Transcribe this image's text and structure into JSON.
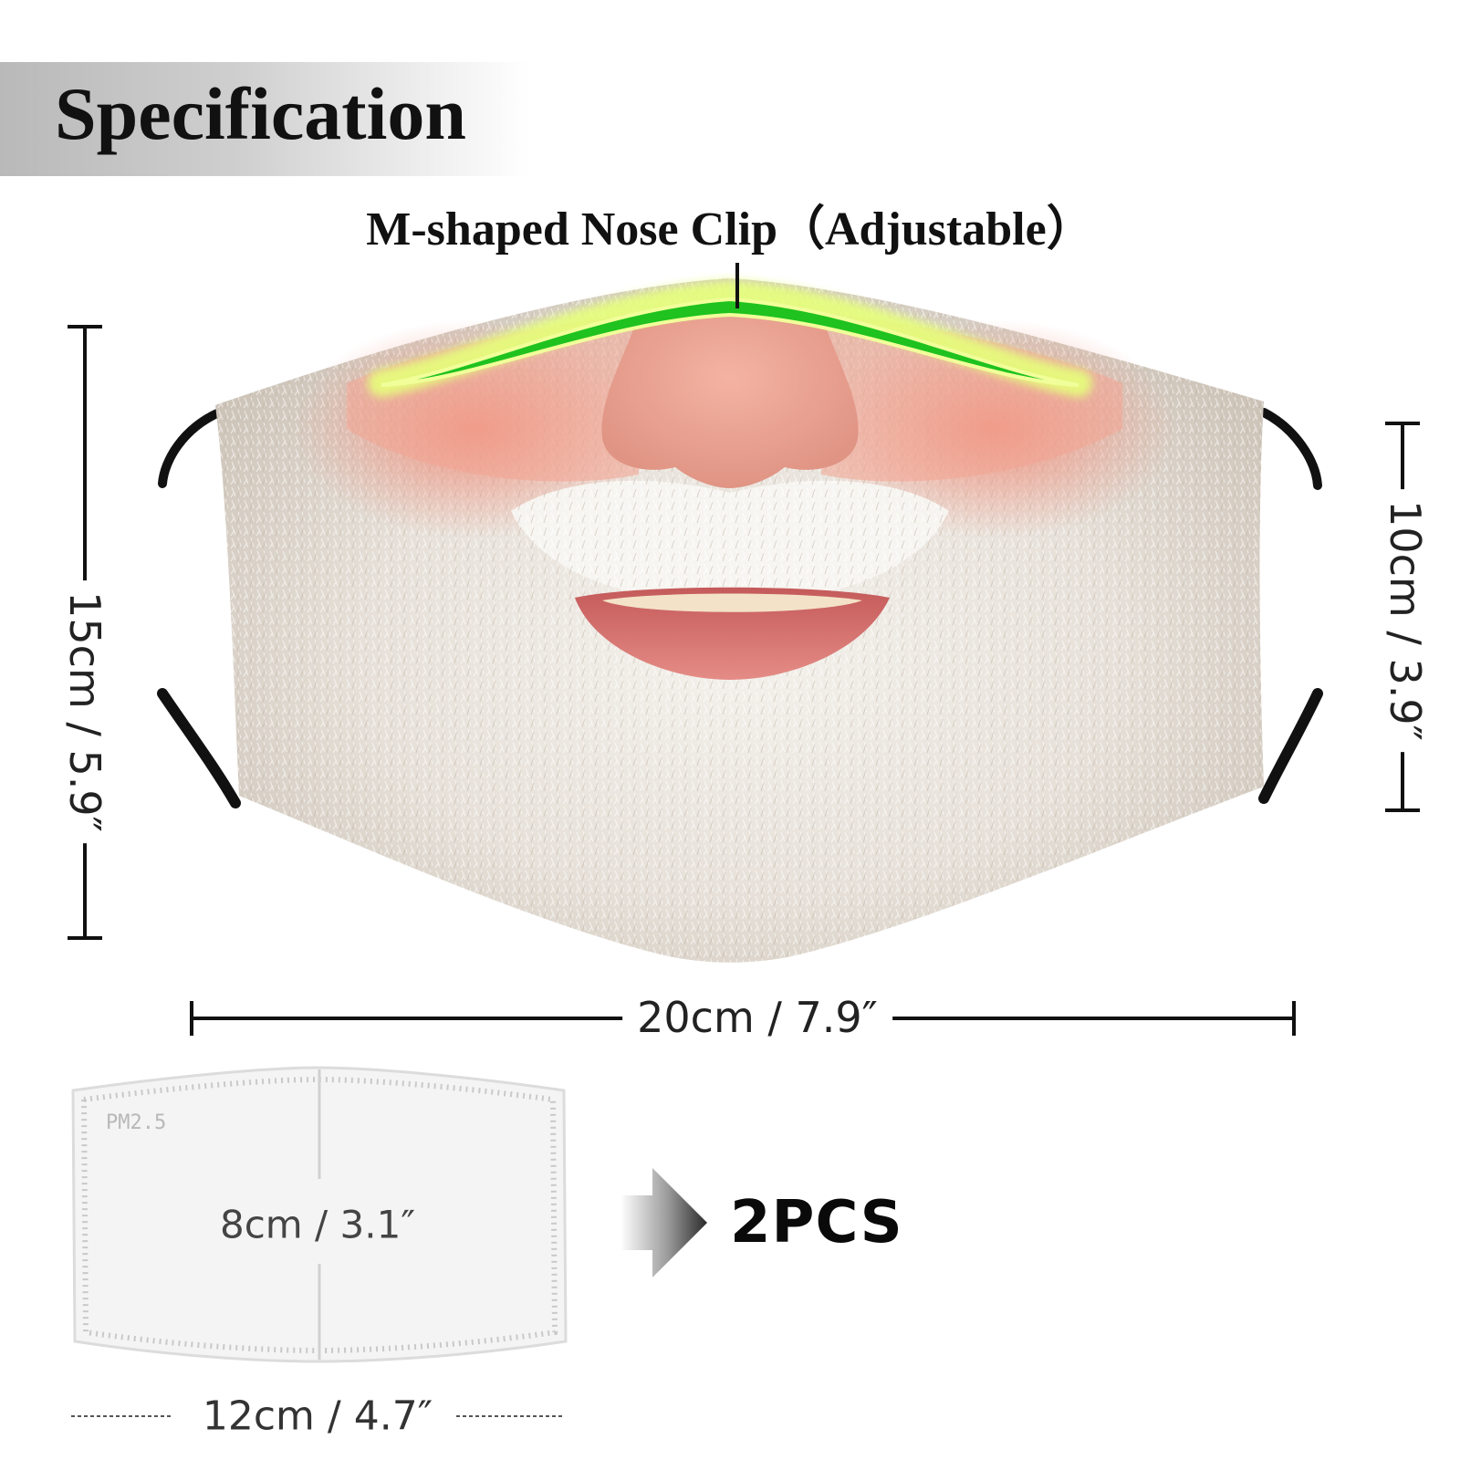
{
  "header": {
    "title": "Specification"
  },
  "nose_clip": {
    "label": "M-shaped Nose Clip（Adjustable）"
  },
  "dimensions": {
    "height": "15cm / 5.9″",
    "side_height": "10cm / 3.9″",
    "width": "20cm / 7.9″"
  },
  "filter": {
    "marking": "PM2.5",
    "height": "8cm / 3.1″",
    "width": "12cm / 4.7″",
    "quantity": "2PCS"
  },
  "colors": {
    "nose_clip": "#1fc21f",
    "nose_clip_glow": "#e6ff7a",
    "skin": "#e89a86",
    "beard": "#e9e6e1",
    "lips": "#d86f6f",
    "ear_loop": "#111111"
  },
  "icons": [
    "arrow-right-icon"
  ]
}
